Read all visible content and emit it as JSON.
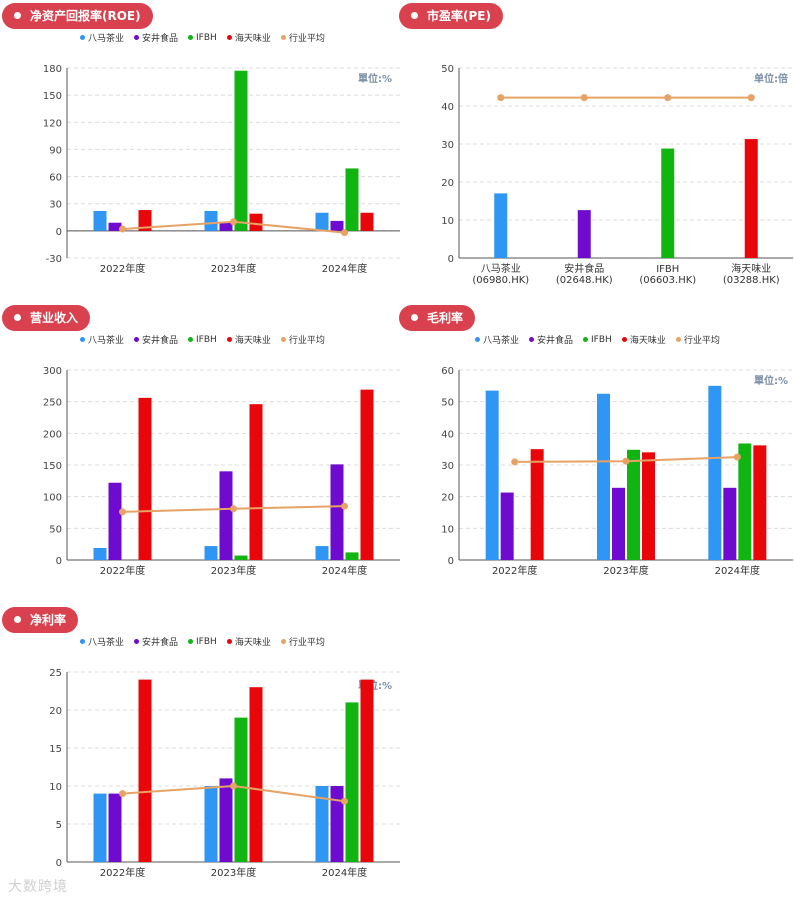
{
  "colors": {
    "八马茶业": "#2f96f3",
    "安井食品": "#6f0bcf",
    "IFBH": "#11b511",
    "海天味业": "#e8060a",
    "行业平均": "#e7a265",
    "pill": "#d9414e"
  },
  "watermark": "大数跨境",
  "chart_data": [
    {
      "id": "roe",
      "type": "bar",
      "title": "净资产回报率(ROE)",
      "unit_label": "單位:%",
      "legend": [
        "八马茶业",
        "安井食品",
        "IFBH",
        "海天味业",
        "行业平均"
      ],
      "categories": [
        "2022年度",
        "2023年度",
        "2024年度"
      ],
      "series": [
        {
          "name": "八马茶业",
          "values": [
            22,
            22,
            20
          ]
        },
        {
          "name": "安井食品",
          "values": [
            9,
            10,
            11
          ]
        },
        {
          "name": "IFBH",
          "values": [
            null,
            177,
            69
          ]
        },
        {
          "name": "海天味业",
          "values": [
            23,
            19,
            20
          ]
        }
      ],
      "line": {
        "name": "行业平均",
        "values": [
          2,
          10,
          -2
        ]
      },
      "ylim": [
        -30,
        180
      ],
      "yticks": [
        -30,
        0,
        30,
        60,
        90,
        120,
        150,
        180
      ]
    },
    {
      "id": "pe",
      "type": "bar",
      "title": "市盈率(PE)",
      "unit_label": "单位:倍",
      "categories": [
        "八马茶业\n(06980.HK)",
        "安井食品\n(02648.HK)",
        "IFBH\n(06603.HK)",
        "海天味业\n(03288.HK)"
      ],
      "values": [
        17,
        12.6,
        28.8,
        31.3
      ],
      "bar_colors": [
        "八马茶业",
        "安井食品",
        "IFBH",
        "海天味业"
      ],
      "line": {
        "name": "行业平均",
        "values": [
          42.2,
          42.2,
          42.2,
          42.2
        ]
      },
      "ylim": [
        0,
        50
      ],
      "yticks": [
        0,
        10,
        20,
        30,
        40,
        50
      ]
    },
    {
      "id": "revenue",
      "type": "bar",
      "title": "营业收入",
      "unit_label": "",
      "legend": [
        "八马茶业",
        "安井食品",
        "IFBH",
        "海天味业",
        "行业平均"
      ],
      "categories": [
        "2022年度",
        "2023年度",
        "2024年度"
      ],
      "series": [
        {
          "name": "八马茶业",
          "values": [
            19,
            22,
            22
          ]
        },
        {
          "name": "安井食品",
          "values": [
            122,
            140,
            151
          ]
        },
        {
          "name": "IFBH",
          "values": [
            null,
            7,
            12
          ]
        },
        {
          "name": "海天味业",
          "values": [
            256,
            246,
            269
          ]
        }
      ],
      "line": {
        "name": "行业平均",
        "values": [
          76,
          81,
          85
        ]
      },
      "ylim": [
        0,
        300
      ],
      "yticks": [
        0,
        50,
        100,
        150,
        200,
        250,
        300
      ]
    },
    {
      "id": "gross",
      "type": "bar",
      "title": "毛利率",
      "unit_label": "單位:%",
      "legend": [
        "八马茶业",
        "安井食品",
        "IFBH",
        "海天味业",
        "行业平均"
      ],
      "categories": [
        "2022年度",
        "2023年度",
        "2024年度"
      ],
      "series": [
        {
          "name": "八马茶业",
          "values": [
            53.5,
            52.5,
            55
          ]
        },
        {
          "name": "安井食品",
          "values": [
            21.3,
            22.8,
            22.8
          ]
        },
        {
          "name": "IFBH",
          "values": [
            null,
            34.8,
            36.8
          ]
        },
        {
          "name": "海天味业",
          "values": [
            35,
            34,
            36.2
          ]
        }
      ],
      "line": {
        "name": "行业平均",
        "values": [
          31,
          31.2,
          32.5
        ]
      },
      "ylim": [
        0,
        60
      ],
      "yticks": [
        0,
        10,
        20,
        30,
        40,
        50,
        60
      ]
    },
    {
      "id": "net",
      "type": "bar",
      "title": "净利率",
      "unit_label": "單位:%",
      "legend": [
        "八马茶业",
        "安井食品",
        "IFBH",
        "海天味业",
        "行业平均"
      ],
      "categories": [
        "2022年度",
        "2023年度",
        "2024年度"
      ],
      "series": [
        {
          "name": "八马茶业",
          "values": [
            9,
            10,
            10
          ]
        },
        {
          "name": "安井食品",
          "values": [
            9,
            11,
            10
          ]
        },
        {
          "name": "IFBH",
          "values": [
            null,
            19,
            21
          ]
        },
        {
          "name": "海天味业",
          "values": [
            24,
            23,
            24
          ]
        }
      ],
      "line": {
        "name": "行业平均",
        "values": [
          9,
          10,
          8
        ]
      },
      "ylim": [
        0,
        25
      ],
      "yticks": [
        0,
        5,
        10,
        15,
        20,
        25
      ]
    }
  ]
}
